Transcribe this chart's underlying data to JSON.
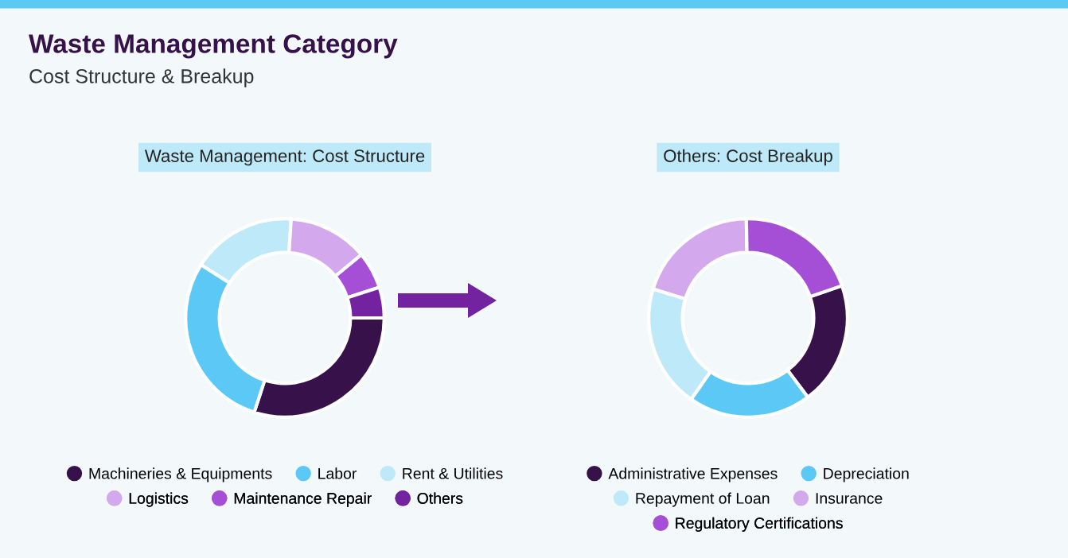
{
  "chart_data": [
    {
      "type": "donut",
      "title": "Waste Management: Cost Structure",
      "annotations": [
        "Waste Management Category",
        "Cost Structure & Breakup"
      ],
      "legend": "bottom",
      "categories": [
        "Machineries & Equipments",
        "Labor",
        "Rent & Utilities",
        "Logistics",
        "Maintenance Repair",
        "Others"
      ],
      "values": [
        30,
        29,
        17,
        13,
        6,
        5
      ],
      "colors": [
        "#37114a",
        "#5bc8f5",
        "#bde9f9",
        "#d4a8ec",
        "#a54fd6",
        "#7322a0"
      ]
    },
    {
      "type": "donut",
      "title": "Others: Cost Breakup",
      "legend": "bottom",
      "categories": [
        "Administrative Expenses",
        "Depreciation",
        "Repayment of Loan",
        "Insurance",
        "Regulatory Certifications"
      ],
      "values": [
        20,
        20,
        20,
        20,
        20
      ],
      "colors": [
        "#37114a",
        "#5bc8f5",
        "#bde9f9",
        "#d4a8ec",
        "#a54fd6"
      ]
    }
  ]
}
